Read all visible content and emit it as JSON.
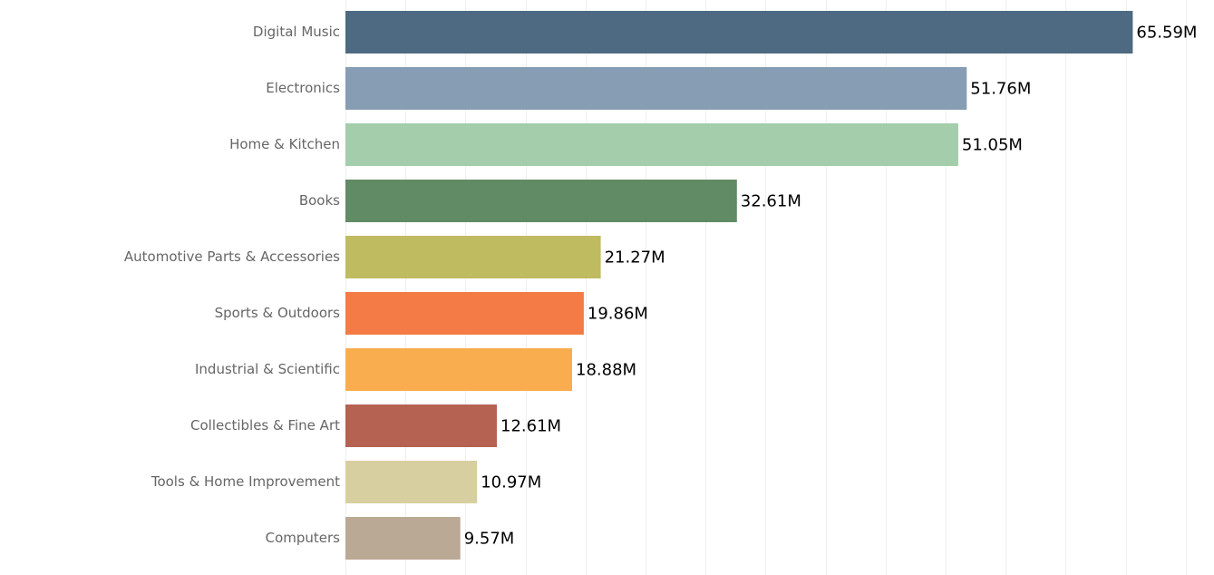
{
  "chart_data": {
    "type": "bar",
    "orientation": "horizontal",
    "categories": [
      "Digital Music",
      "Electronics",
      "Home & Kitchen",
      "Books",
      "Automotive Parts & Accessories",
      "Sports & Outdoors",
      "Industrial & Scientific",
      "Collectibles & Fine Art",
      "Tools & Home Improvement",
      "Computers"
    ],
    "values": [
      65.59,
      51.76,
      51.05,
      32.61,
      21.27,
      19.86,
      18.88,
      12.61,
      10.97,
      9.57
    ],
    "value_labels": [
      "65.59M",
      "51.76M",
      "51.05M",
      "32.61M",
      "21.27M",
      "19.86M",
      "18.88M",
      "12.61M",
      "10.97M",
      "9.57M"
    ],
    "unit": "M",
    "colors": [
      "#4e6a82",
      "#879db3",
      "#a3cdab",
      "#618b64",
      "#bfbb60",
      "#f47b45",
      "#f9ad4f",
      "#b56253",
      "#d7cfa0",
      "#b9a995"
    ],
    "xlim": [
      0,
      70
    ],
    "grid": true,
    "title": "",
    "xlabel": "",
    "ylabel": ""
  }
}
